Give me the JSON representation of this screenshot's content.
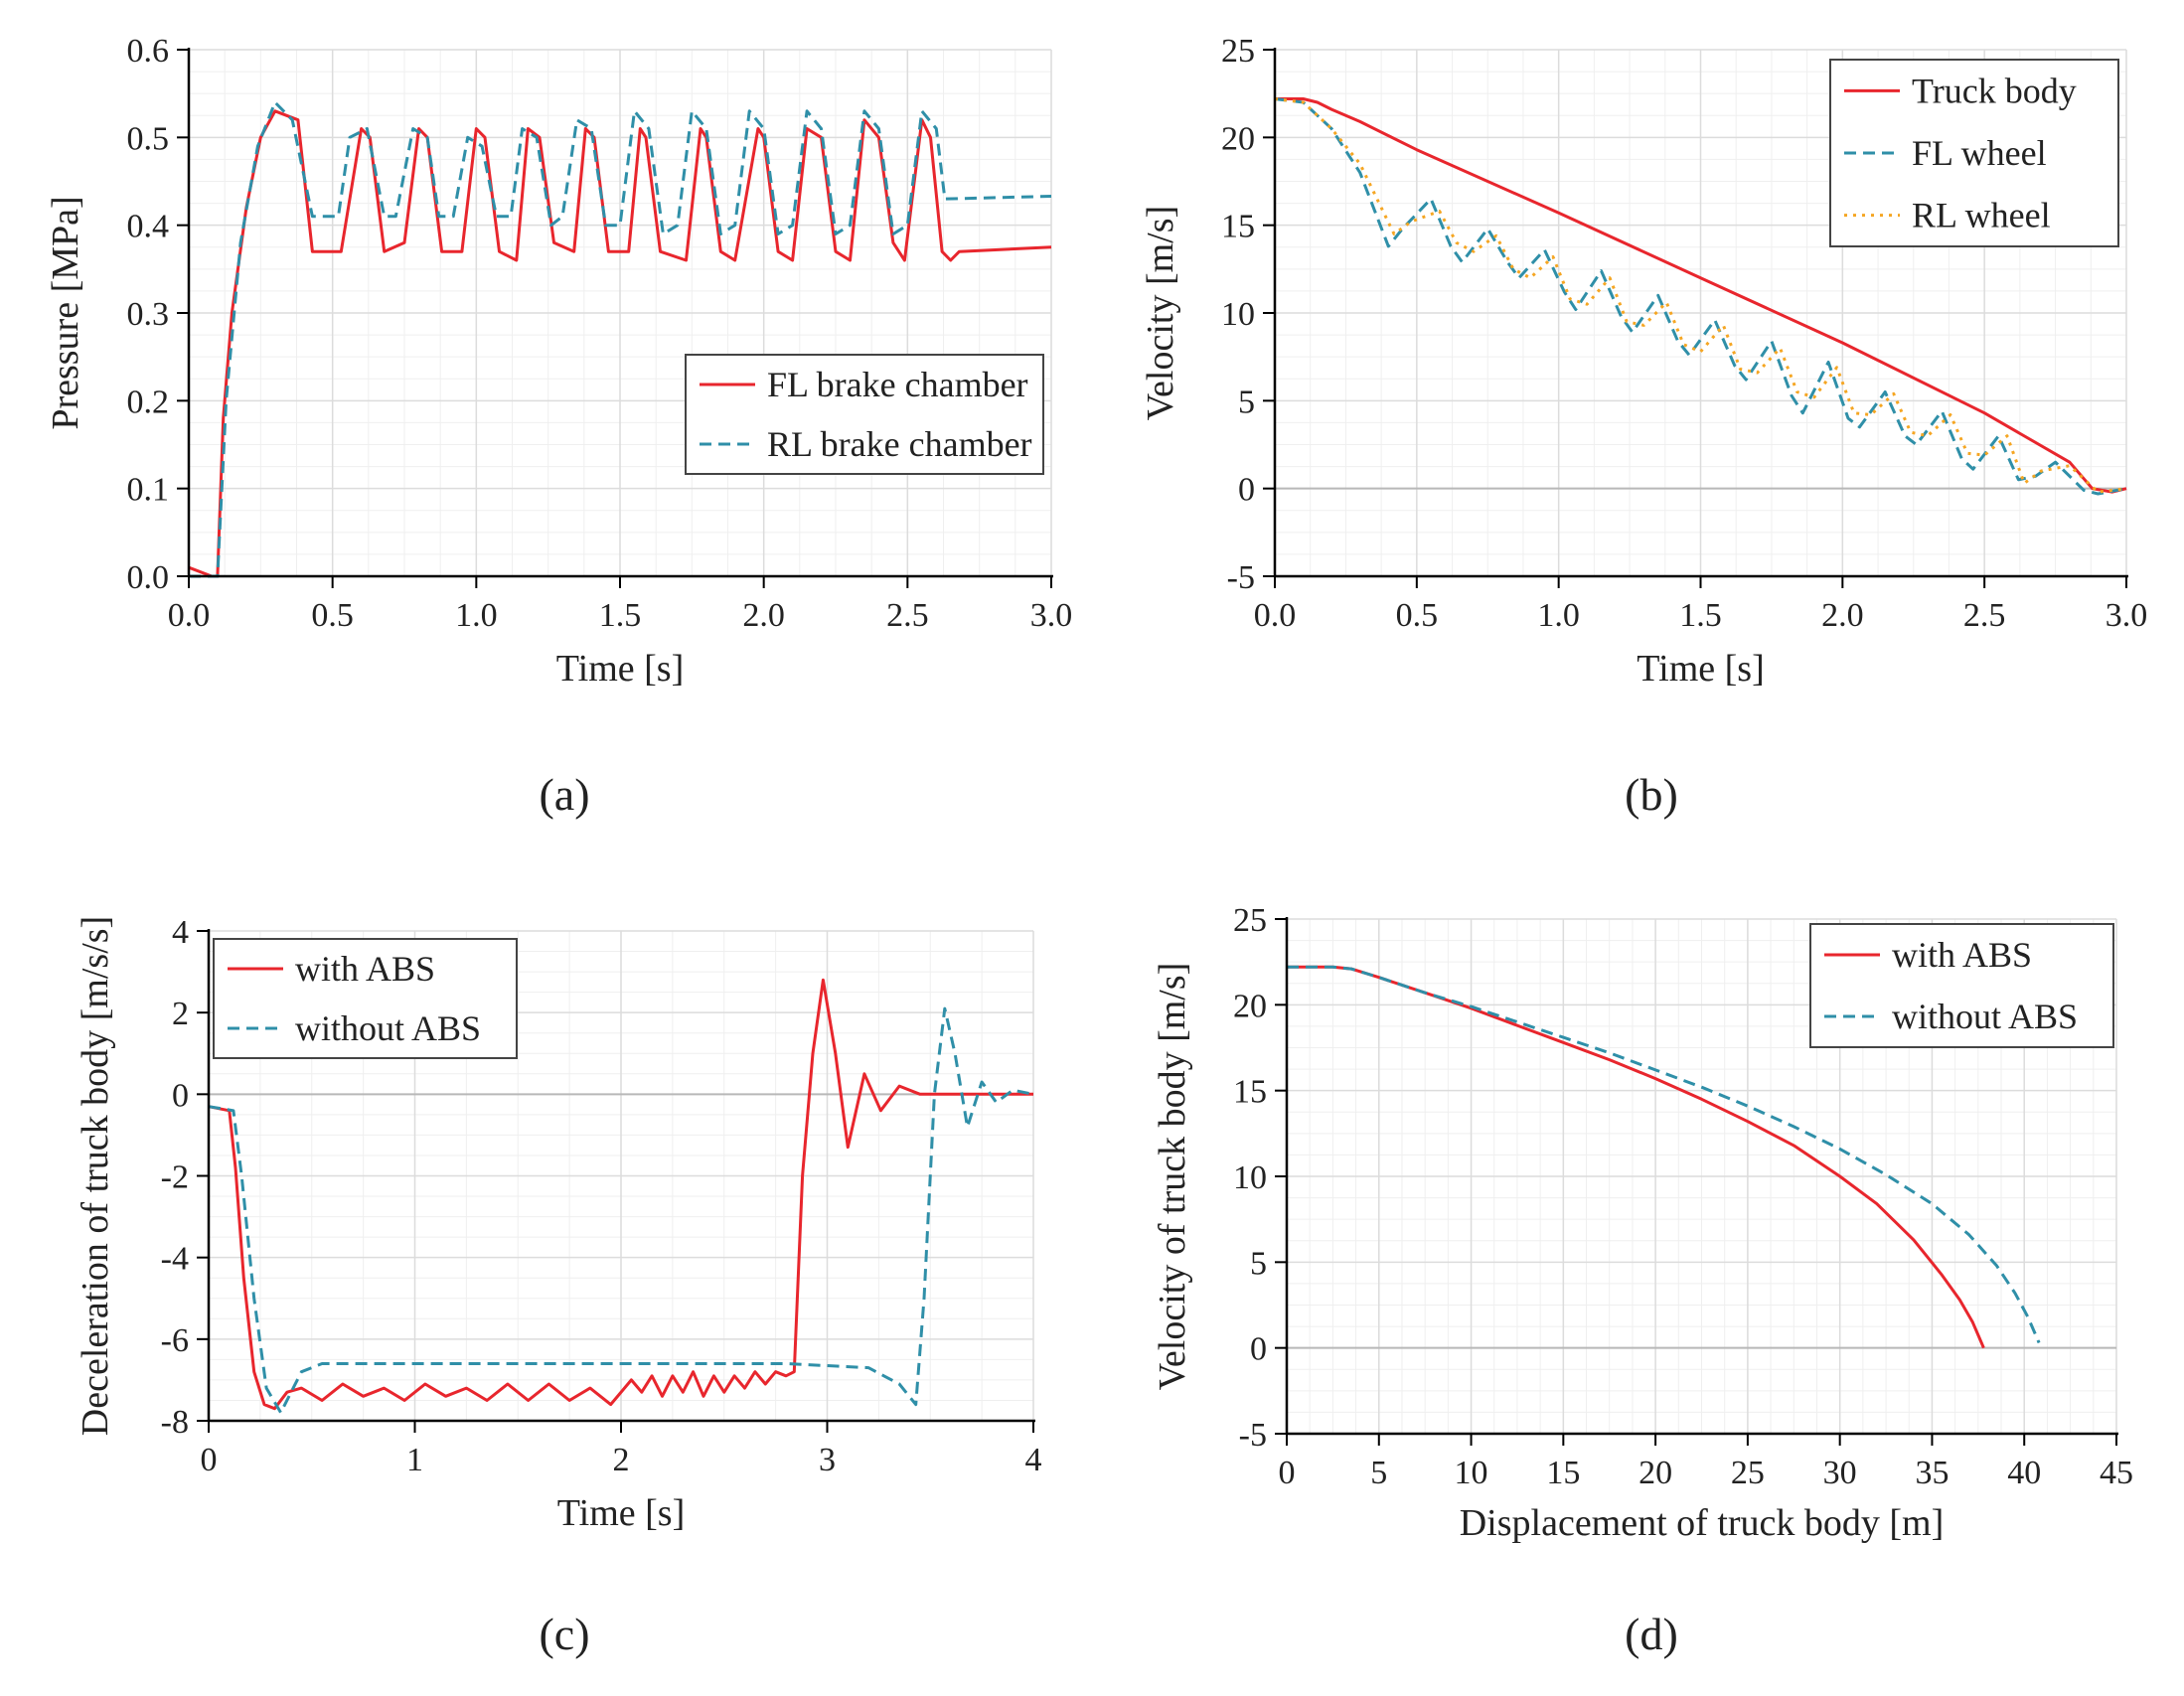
{
  "chart_data": [
    {
      "id": "a",
      "type": "line",
      "caption": "(a)",
      "xlabel": "Time [s]",
      "ylabel": "Pressure [MPa]",
      "xlim": [
        0,
        3.0
      ],
      "ylim": [
        0,
        0.6
      ],
      "xticks": [
        "0.0",
        "0.5",
        "1.0",
        "1.5",
        "2.0",
        "2.5",
        "3.0"
      ],
      "yticks": [
        "0.0",
        "0.1",
        "0.2",
        "0.3",
        "0.4",
        "0.5",
        "0.6"
      ],
      "legend_position": "lower-right",
      "series": [
        {
          "name": "FL brake chamber",
          "color": "#e8262d",
          "dash": "solid",
          "x": [
            0,
            0.08,
            0.1,
            0.12,
            0.15,
            0.2,
            0.25,
            0.3,
            0.38,
            0.43,
            0.53,
            0.6,
            0.63,
            0.68,
            0.75,
            0.8,
            0.83,
            0.88,
            0.95,
            1.0,
            1.03,
            1.08,
            1.14,
            1.18,
            1.22,
            1.27,
            1.34,
            1.38,
            1.41,
            1.46,
            1.53,
            1.57,
            1.59,
            1.64,
            1.73,
            1.78,
            1.8,
            1.85,
            1.9,
            1.98,
            2.0,
            2.05,
            2.1,
            2.15,
            2.2,
            2.25,
            2.3,
            2.35,
            2.4,
            2.45,
            2.49,
            2.55,
            2.58,
            2.62,
            2.65,
            2.68,
            3.0
          ],
          "y": [
            0.01,
            0.0,
            0.0,
            0.18,
            0.3,
            0.42,
            0.5,
            0.53,
            0.52,
            0.37,
            0.37,
            0.51,
            0.5,
            0.37,
            0.38,
            0.51,
            0.5,
            0.37,
            0.37,
            0.51,
            0.5,
            0.37,
            0.36,
            0.51,
            0.5,
            0.38,
            0.37,
            0.51,
            0.5,
            0.37,
            0.37,
            0.51,
            0.5,
            0.37,
            0.36,
            0.51,
            0.5,
            0.37,
            0.36,
            0.51,
            0.5,
            0.37,
            0.36,
            0.51,
            0.5,
            0.37,
            0.36,
            0.52,
            0.5,
            0.38,
            0.36,
            0.52,
            0.5,
            0.37,
            0.36,
            0.37,
            0.375
          ]
        },
        {
          "name": "RL brake chamber",
          "color": "#2f8fa8",
          "dash": "dashed",
          "x": [
            0,
            0.1,
            0.13,
            0.18,
            0.24,
            0.3,
            0.36,
            0.43,
            0.52,
            0.56,
            0.62,
            0.68,
            0.72,
            0.78,
            0.83,
            0.87,
            0.92,
            0.97,
            1.02,
            1.07,
            1.12,
            1.16,
            1.21,
            1.26,
            1.3,
            1.35,
            1.4,
            1.45,
            1.5,
            1.55,
            1.6,
            1.65,
            1.7,
            1.75,
            1.8,
            1.85,
            1.9,
            1.95,
            2.0,
            2.05,
            2.1,
            2.15,
            2.2,
            2.25,
            2.3,
            2.35,
            2.4,
            2.45,
            2.5,
            2.55,
            2.6,
            2.63,
            3.0
          ],
          "y": [
            0.0,
            0.0,
            0.2,
            0.38,
            0.49,
            0.54,
            0.52,
            0.41,
            0.41,
            0.5,
            0.51,
            0.41,
            0.41,
            0.51,
            0.5,
            0.41,
            0.41,
            0.5,
            0.49,
            0.41,
            0.41,
            0.51,
            0.5,
            0.4,
            0.41,
            0.52,
            0.51,
            0.4,
            0.4,
            0.53,
            0.51,
            0.39,
            0.4,
            0.53,
            0.51,
            0.39,
            0.4,
            0.53,
            0.51,
            0.39,
            0.4,
            0.53,
            0.51,
            0.39,
            0.4,
            0.53,
            0.51,
            0.39,
            0.4,
            0.53,
            0.51,
            0.43,
            0.433
          ]
        }
      ]
    },
    {
      "id": "b",
      "type": "line",
      "caption": "(b)",
      "xlabel": "Time [s]",
      "ylabel": "Velocity [m/s]",
      "xlim": [
        0,
        3.0
      ],
      "ylim": [
        -5,
        25
      ],
      "xticks": [
        "0.0",
        "0.5",
        "1.0",
        "1.5",
        "2.0",
        "2.5",
        "3.0"
      ],
      "yticks": [
        "-5",
        "0",
        "5",
        "10",
        "15",
        "20",
        "25"
      ],
      "legend_position": "top-right",
      "series": [
        {
          "name": "Truck body",
          "color": "#e8262d",
          "dash": "solid",
          "x": [
            0,
            0.1,
            0.15,
            0.2,
            0.3,
            0.5,
            1.0,
            1.5,
            2.0,
            2.5,
            2.8,
            2.88,
            2.95,
            3.0
          ],
          "y": [
            22.2,
            22.2,
            22.0,
            21.6,
            20.9,
            19.3,
            15.7,
            12.0,
            8.3,
            4.3,
            1.5,
            0.0,
            -0.2,
            0.0
          ]
        },
        {
          "name": "FL wheel",
          "color": "#2f8fa8",
          "dash": "dashed",
          "x": [
            0,
            0.1,
            0.2,
            0.3,
            0.4,
            0.45,
            0.55,
            0.62,
            0.66,
            0.75,
            0.82,
            0.86,
            0.95,
            1.02,
            1.06,
            1.15,
            1.22,
            1.26,
            1.35,
            1.42,
            1.46,
            1.55,
            1.62,
            1.66,
            1.75,
            1.82,
            1.86,
            1.95,
            2.02,
            2.06,
            2.15,
            2.22,
            2.26,
            2.35,
            2.42,
            2.46,
            2.55,
            2.62,
            2.68,
            2.75,
            2.85,
            2.9,
            3.0
          ],
          "y": [
            22.2,
            22.0,
            20.5,
            18.0,
            13.8,
            14.8,
            16.5,
            13.8,
            12.9,
            14.8,
            12.9,
            12.0,
            13.6,
            11.2,
            10.2,
            12.4,
            9.8,
            8.9,
            11.0,
            8.4,
            7.6,
            9.6,
            7.0,
            6.2,
            8.4,
            5.3,
            4.3,
            7.2,
            4.0,
            3.5,
            5.5,
            3.0,
            2.5,
            4.4,
            1.7,
            1.1,
            3.0,
            0.5,
            0.7,
            1.5,
            -0.1,
            -0.3,
            0.0
          ]
        },
        {
          "name": "RL wheel",
          "color": "#f5a623",
          "dash": "dotted",
          "x": [
            0,
            0.1,
            0.2,
            0.3,
            0.42,
            0.48,
            0.58,
            0.64,
            0.7,
            0.78,
            0.84,
            0.9,
            0.98,
            1.04,
            1.1,
            1.18,
            1.24,
            1.3,
            1.38,
            1.44,
            1.5,
            1.58,
            1.64,
            1.7,
            1.78,
            1.84,
            1.9,
            1.98,
            2.04,
            2.1,
            2.18,
            2.24,
            2.3,
            2.38,
            2.44,
            2.5,
            2.58,
            2.64,
            2.7,
            2.8,
            2.9,
            3.0
          ],
          "y": [
            22.2,
            22.0,
            20.5,
            18.5,
            14.5,
            15.2,
            15.8,
            14.0,
            13.5,
            14.4,
            12.5,
            12.0,
            13.2,
            10.8,
            10.5,
            12.0,
            9.5,
            9.3,
            10.6,
            8.2,
            7.8,
            9.3,
            6.8,
            6.6,
            8.0,
            5.5,
            5.2,
            6.9,
            4.3,
            4.2,
            5.4,
            3.2,
            3.0,
            4.2,
            2.0,
            1.9,
            3.0,
            0.3,
            1.0,
            1.3,
            -0.2,
            0.0
          ]
        }
      ]
    },
    {
      "id": "c",
      "type": "line",
      "caption": "(c)",
      "xlabel": "Time [s]",
      "ylabel": "Deceleration of truck body [m/s/s]",
      "xlim": [
        0,
        4
      ],
      "ylim": [
        -8,
        4
      ],
      "xticks": [
        "0",
        "1",
        "2",
        "3",
        "4"
      ],
      "yticks": [
        "-8",
        "-6",
        "-4",
        "-2",
        "0",
        "2",
        "4"
      ],
      "legend_position": "top-left",
      "series": [
        {
          "name": "with ABS",
          "color": "#e8262d",
          "dash": "solid",
          "x": [
            0,
            0.1,
            0.13,
            0.17,
            0.22,
            0.27,
            0.32,
            0.38,
            0.45,
            0.55,
            0.65,
            0.75,
            0.85,
            0.95,
            1.05,
            1.15,
            1.25,
            1.35,
            1.45,
            1.55,
            1.65,
            1.75,
            1.85,
            1.95,
            2.05,
            2.1,
            2.15,
            2.2,
            2.25,
            2.3,
            2.35,
            2.4,
            2.45,
            2.5,
            2.55,
            2.6,
            2.65,
            2.7,
            2.75,
            2.8,
            2.84,
            2.88,
            2.93,
            2.98,
            3.04,
            3.1,
            3.18,
            3.26,
            3.35,
            3.45,
            3.55,
            4.0
          ],
          "y": [
            -0.3,
            -0.4,
            -1.8,
            -4.5,
            -6.8,
            -7.6,
            -7.7,
            -7.3,
            -7.2,
            -7.5,
            -7.1,
            -7.4,
            -7.2,
            -7.5,
            -7.1,
            -7.4,
            -7.2,
            -7.5,
            -7.1,
            -7.5,
            -7.1,
            -7.5,
            -7.2,
            -7.6,
            -7.0,
            -7.3,
            -6.9,
            -7.4,
            -6.9,
            -7.3,
            -6.8,
            -7.4,
            -6.9,
            -7.3,
            -6.9,
            -7.2,
            -6.8,
            -7.1,
            -6.8,
            -6.9,
            -6.8,
            -2.0,
            1.0,
            2.8,
            1.0,
            -1.3,
            0.5,
            -0.4,
            0.2,
            0.0,
            0.0,
            0.0
          ]
        },
        {
          "name": "without ABS",
          "color": "#2f8fa8",
          "dash": "dashed",
          "x": [
            0,
            0.12,
            0.16,
            0.22,
            0.28,
            0.35,
            0.4,
            0.45,
            0.55,
            1.0,
            2.0,
            2.8,
            3.2,
            3.35,
            3.43,
            3.47,
            3.52,
            3.57,
            3.62,
            3.68,
            3.75,
            3.82,
            3.9,
            4.0
          ],
          "y": [
            -0.3,
            -0.4,
            -2.0,
            -5.0,
            -7.2,
            -7.8,
            -7.3,
            -6.8,
            -6.6,
            -6.6,
            -6.6,
            -6.6,
            -6.7,
            -7.1,
            -7.6,
            -5.0,
            0.0,
            2.1,
            1.0,
            -0.8,
            0.3,
            -0.2,
            0.1,
            0.0
          ]
        }
      ]
    },
    {
      "id": "d",
      "type": "line",
      "caption": "(d)",
      "xlabel": "Displacement of truck body [m]",
      "ylabel": "Velocity of truck body [m/s]",
      "xlim": [
        0,
        45
      ],
      "ylim": [
        -5,
        25
      ],
      "xticks": [
        "0",
        "5",
        "10",
        "15",
        "20",
        "25",
        "30",
        "35",
        "40",
        "45"
      ],
      "yticks": [
        "-5",
        "0",
        "5",
        "10",
        "15",
        "20",
        "25"
      ],
      "legend_position": "top-right",
      "series": [
        {
          "name": "with ABS",
          "color": "#e8262d",
          "dash": "solid",
          "x": [
            0,
            2.5,
            3.5,
            5,
            7.5,
            10,
            12.5,
            15,
            17.5,
            20,
            22.5,
            25,
            27.5,
            30,
            32,
            34,
            35.5,
            36.5,
            37.2,
            37.6,
            37.8
          ],
          "y": [
            22.2,
            22.2,
            22.1,
            21.6,
            20.7,
            19.8,
            18.8,
            17.8,
            16.8,
            15.7,
            14.5,
            13.2,
            11.8,
            10.0,
            8.4,
            6.3,
            4.3,
            2.8,
            1.5,
            0.5,
            0.0
          ]
        },
        {
          "name": "without ABS",
          "color": "#2f8fa8",
          "dash": "dashed",
          "x": [
            0,
            2.5,
            3.5,
            5,
            7.5,
            10,
            12.5,
            15,
            17.5,
            20,
            22.5,
            25,
            27.5,
            30,
            32.5,
            35,
            37,
            38.5,
            39.5,
            40.2,
            40.6,
            40.8
          ],
          "y": [
            22.2,
            22.2,
            22.1,
            21.6,
            20.7,
            19.9,
            19.0,
            18.1,
            17.2,
            16.2,
            15.2,
            14.1,
            12.9,
            11.6,
            10.1,
            8.4,
            6.6,
            4.8,
            3.2,
            1.8,
            0.8,
            0.3
          ]
        }
      ]
    }
  ]
}
